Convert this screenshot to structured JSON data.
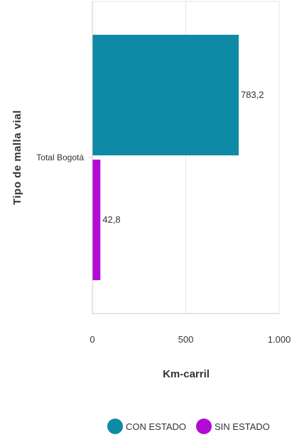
{
  "chart_data": {
    "type": "bar",
    "orientation": "horizontal",
    "categories": [
      "Total Bogotá"
    ],
    "series": [
      {
        "name": "CON ESTADO",
        "values": [
          783.2
        ],
        "color": "#0e8aa6",
        "data_label": "783,2"
      },
      {
        "name": "SIN ESTADO",
        "values": [
          42.8
        ],
        "color": "#b20bd6",
        "data_label": "42,8"
      }
    ],
    "xlabel": "Km-carril",
    "ylabel": "Tipo de malla vial",
    "xlim": [
      0,
      1000
    ],
    "x_ticks": [
      {
        "value": 0,
        "label": "0"
      },
      {
        "value": 500,
        "label": "500"
      },
      {
        "value": 1000,
        "label": "1.000"
      }
    ],
    "grid": true,
    "legend_position": "bottom"
  }
}
